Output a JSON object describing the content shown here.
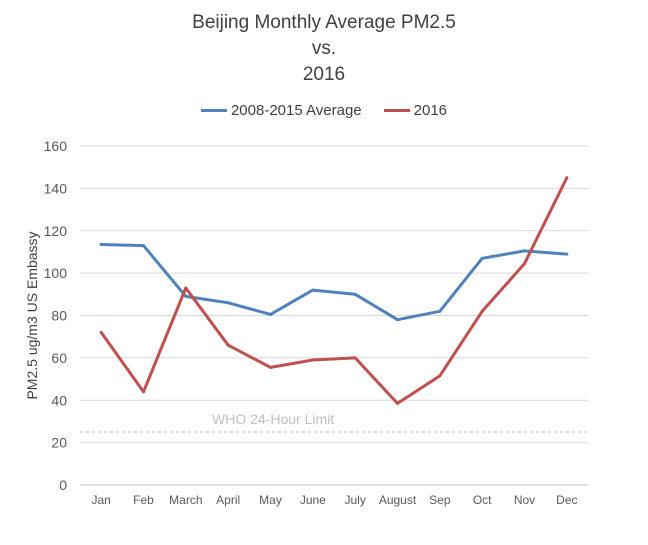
{
  "chart_data": {
    "type": "line",
    "title": [
      "Beijing Monthly Average PM2.5",
      "vs.",
      "2016"
    ],
    "ylabel": "PM2.5 ug/m3 US Embassy",
    "xlabel": "",
    "ylim": [
      0,
      160
    ],
    "yticks": [
      "0",
      "20",
      "40",
      "60",
      "80",
      "100",
      "120",
      "140",
      "160"
    ],
    "grid": true,
    "legend_position": "top",
    "categories": [
      "Jan",
      "Feb",
      "March",
      "April",
      "May",
      "June",
      "July",
      "August",
      "Sep",
      "Oct",
      "Nov",
      "Dec"
    ],
    "series": [
      {
        "name": "2008-2015 Average",
        "color": "#4f81bd",
        "values": [
          113.5,
          113,
          89,
          86,
          80.5,
          92,
          90,
          78,
          82,
          107,
          110.5,
          109
        ]
      },
      {
        "name": "2016",
        "color": "#c0504d",
        "values": [
          72,
          44,
          93,
          66,
          55.5,
          59,
          60,
          38.5,
          51.5,
          82,
          104.5,
          145
        ]
      }
    ],
    "reference_line": {
      "label": "WHO 24-Hour Limit",
      "value": 25,
      "color": "#bfbfbf"
    }
  }
}
